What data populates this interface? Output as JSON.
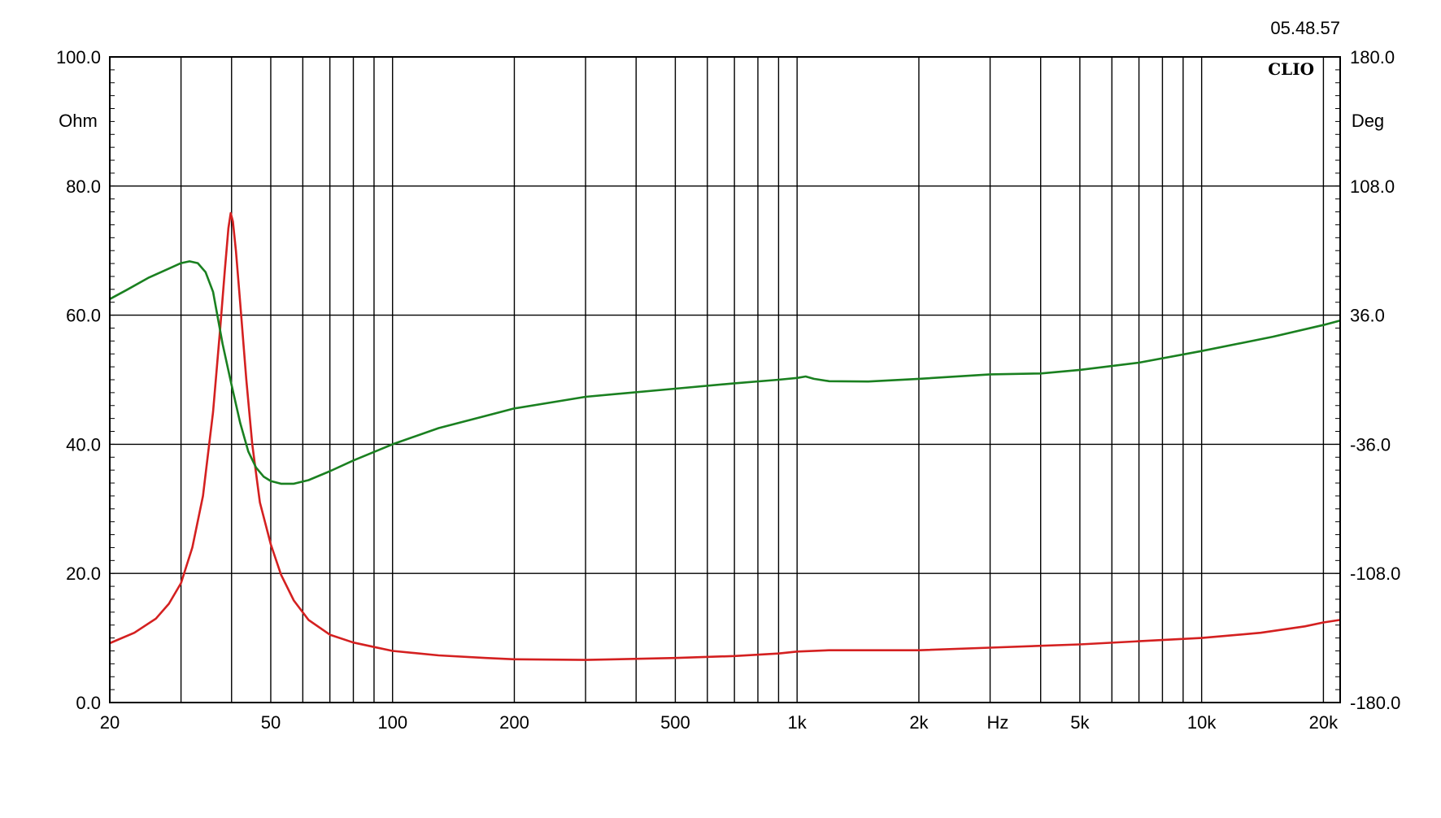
{
  "timestamp": "05.48.57",
  "brand": "CLIO",
  "chart_data": {
    "type": "line",
    "x_scale": "log",
    "xlim": [
      20,
      22000
    ],
    "grid": true,
    "x_ticks": [
      {
        "value": 20,
        "label": "20"
      },
      {
        "value": 50,
        "label": "50"
      },
      {
        "value": 100,
        "label": "100"
      },
      {
        "value": 200,
        "label": "200"
      },
      {
        "value": 500,
        "label": "500"
      },
      {
        "value": 1000,
        "label": "1k"
      },
      {
        "value": 2000,
        "label": "2k"
      },
      {
        "value": 5000,
        "label": "5k"
      },
      {
        "value": 10000,
        "label": "10k"
      },
      {
        "value": 20000,
        "label": "20k"
      }
    ],
    "x_unit": "Hz",
    "y_left": {
      "unit": "Ohm",
      "ylim": [
        0,
        100
      ],
      "ticks": [
        "0.0",
        "20.0",
        "40.0",
        "60.0",
        "80.0",
        "100.0"
      ]
    },
    "y_right": {
      "unit": "Deg",
      "ylim": [
        -180,
        180
      ],
      "ticks": [
        "-180.0",
        "-108.0",
        "-36.0",
        "36.0",
        "108.0",
        "180.0"
      ]
    },
    "series": [
      {
        "axis": "left",
        "color": "#d42020",
        "points": [
          [
            20,
            9.2
          ],
          [
            23,
            10.8
          ],
          [
            26,
            13
          ],
          [
            28,
            15.3
          ],
          [
            30,
            18.5
          ],
          [
            32,
            24
          ],
          [
            34,
            32
          ],
          [
            36,
            45
          ],
          [
            37.5,
            58
          ],
          [
            38.5,
            67
          ],
          [
            39.3,
            73.5
          ],
          [
            39.8,
            75.8
          ],
          [
            40.3,
            74.5
          ],
          [
            41,
            70
          ],
          [
            42,
            62
          ],
          [
            43.5,
            50
          ],
          [
            45,
            40
          ],
          [
            47,
            31
          ],
          [
            50,
            24.5
          ],
          [
            53,
            19.8
          ],
          [
            57,
            15.8
          ],
          [
            62,
            12.8
          ],
          [
            70,
            10.5
          ],
          [
            80,
            9.3
          ],
          [
            90,
            8.6
          ],
          [
            100,
            8.0
          ],
          [
            130,
            7.3
          ],
          [
            170,
            6.9
          ],
          [
            200,
            6.7
          ],
          [
            300,
            6.6
          ],
          [
            500,
            6.9
          ],
          [
            700,
            7.2
          ],
          [
            900,
            7.6
          ],
          [
            1000,
            7.9
          ],
          [
            1200,
            8.1
          ],
          [
            2000,
            8.1
          ],
          [
            3000,
            8.5
          ],
          [
            5000,
            9.0
          ],
          [
            7000,
            9.5
          ],
          [
            10000,
            10.0
          ],
          [
            14000,
            10.8
          ],
          [
            18000,
            11.8
          ],
          [
            20000,
            12.4
          ],
          [
            22000,
            12.8
          ]
        ]
      },
      {
        "axis": "right",
        "color": "#1a8020",
        "points": [
          [
            20,
            45
          ],
          [
            22,
            50
          ],
          [
            25,
            57
          ],
          [
            28,
            62
          ],
          [
            30,
            65
          ],
          [
            31.5,
            66
          ],
          [
            33,
            65
          ],
          [
            34.5,
            60
          ],
          [
            36,
            49
          ],
          [
            38,
            20
          ],
          [
            40,
            -3
          ],
          [
            42,
            -24
          ],
          [
            44,
            -40
          ],
          [
            46,
            -49
          ],
          [
            48,
            -54
          ],
          [
            50,
            -56.5
          ],
          [
            53,
            -58
          ],
          [
            57,
            -58
          ],
          [
            62,
            -56
          ],
          [
            70,
            -51
          ],
          [
            80,
            -45
          ],
          [
            100,
            -36
          ],
          [
            130,
            -27
          ],
          [
            200,
            -16
          ],
          [
            300,
            -9.5
          ],
          [
            500,
            -5
          ],
          [
            700,
            -2
          ],
          [
            900,
            0
          ],
          [
            1000,
            1
          ],
          [
            1050,
            1.8
          ],
          [
            1100,
            0.5
          ],
          [
            1200,
            -0.8
          ],
          [
            1500,
            -1
          ],
          [
            2000,
            0.5
          ],
          [
            3000,
            3
          ],
          [
            4000,
            3.5
          ],
          [
            5000,
            5.5
          ],
          [
            7000,
            9.5
          ],
          [
            10000,
            16
          ],
          [
            15000,
            24
          ],
          [
            20000,
            30.5
          ],
          [
            22000,
            33
          ]
        ]
      }
    ]
  }
}
